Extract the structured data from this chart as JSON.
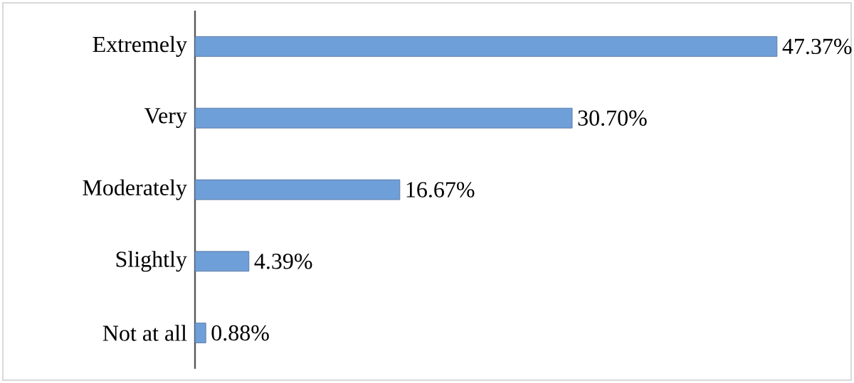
{
  "chart_data": {
    "type": "bar",
    "orientation": "horizontal",
    "categories": [
      "Extremely",
      "Very",
      "Moderately",
      "Slightly",
      "Not at all"
    ],
    "values": [
      47.37,
      30.7,
      16.67,
      4.39,
      0.88
    ],
    "value_labels": [
      "47.37%",
      "30.70%",
      "16.67%",
      "4.39%",
      "0.88%"
    ],
    "color": "#6f9fd8"
  }
}
